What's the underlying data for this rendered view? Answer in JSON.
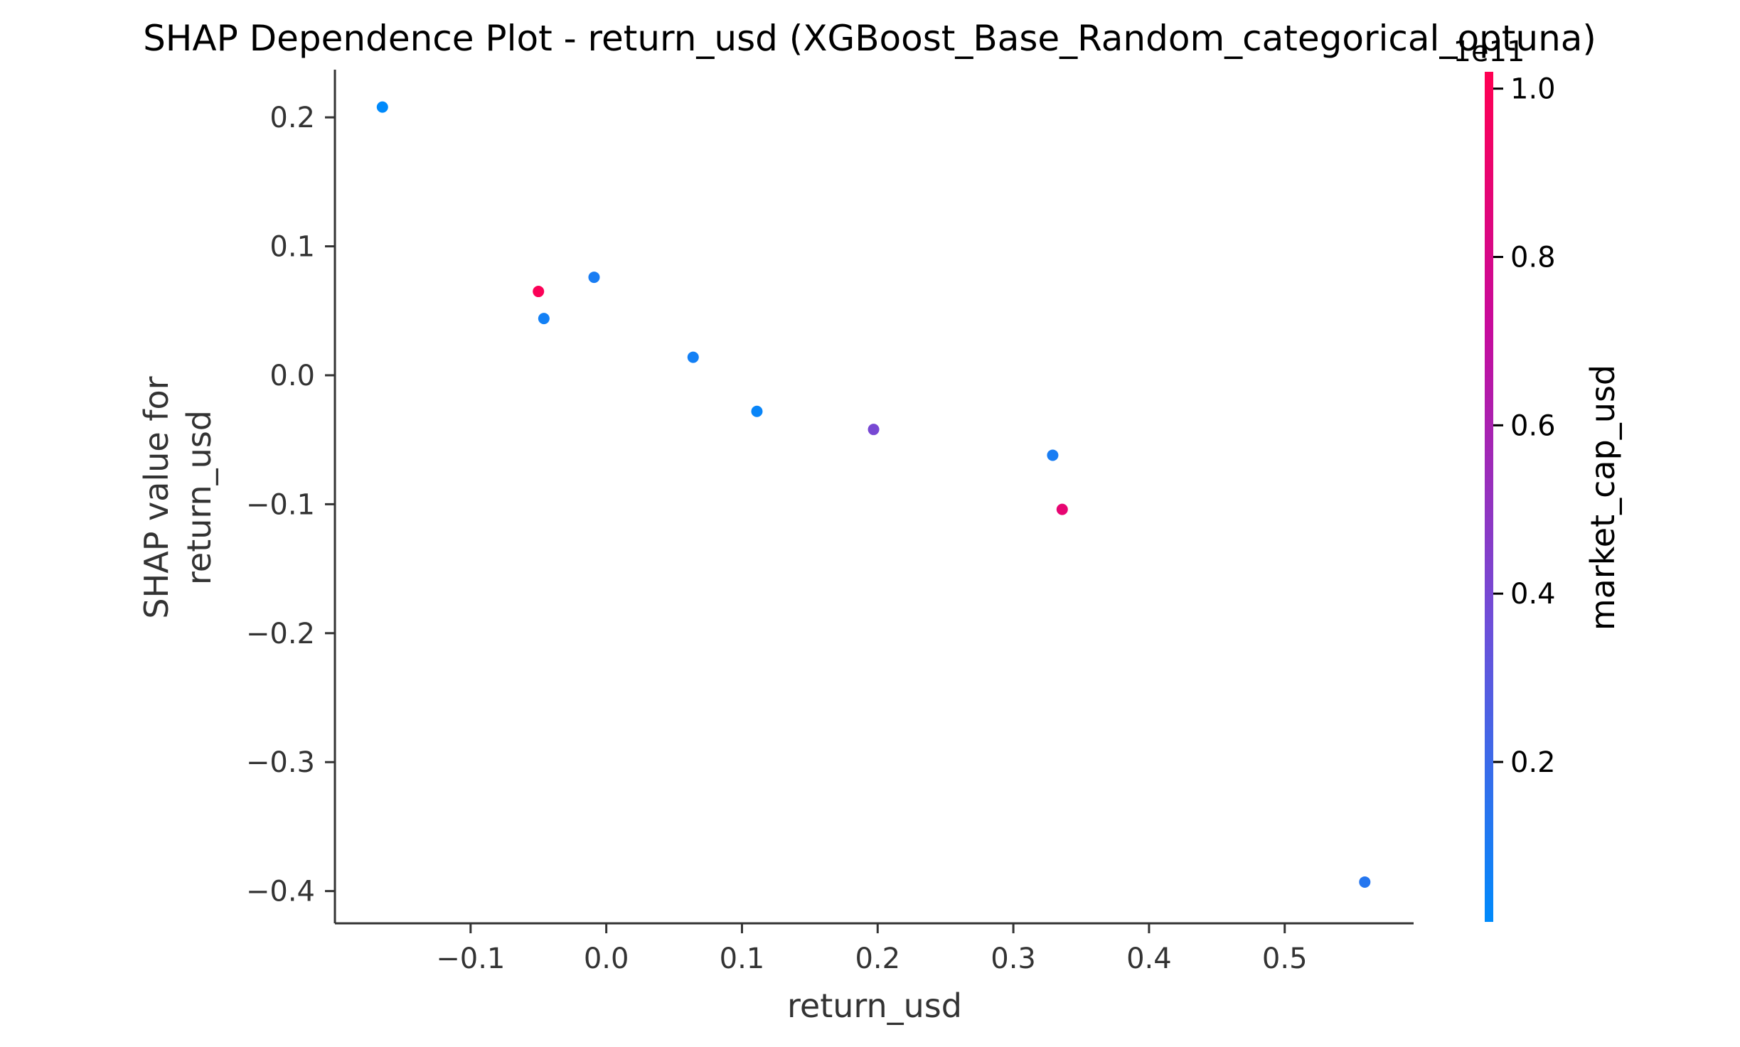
{
  "chart_data": {
    "type": "scatter",
    "title": "SHAP Dependence Plot - return_usd (XGBoost_Base_Random_categorical_optuna)",
    "xlabel": "return_usd",
    "ylabel_lines": [
      "SHAP value for",
      "return_usd"
    ],
    "xlim": [
      -0.2,
      0.595
    ],
    "ylim": [
      -0.425,
      0.237
    ],
    "xticks": [
      -0.1,
      0.0,
      0.1,
      0.2,
      0.3,
      0.4,
      0.5
    ],
    "xtick_labels": [
      "−0.1",
      "0.0",
      "0.1",
      "0.2",
      "0.3",
      "0.4",
      "0.5"
    ],
    "yticks": [
      0.2,
      0.1,
      0.0,
      -0.1,
      -0.2,
      -0.3,
      -0.4
    ],
    "ytick_labels": [
      "0.2",
      "0.1",
      "0.0",
      "−0.1",
      "−0.2",
      "−0.3",
      "−0.4"
    ],
    "grid": false,
    "points": [
      {
        "x": -0.165,
        "y": 0.208,
        "c": 1000000000.0
      },
      {
        "x": -0.05,
        "y": 0.065,
        "c": 100000000000.0
      },
      {
        "x": -0.046,
        "y": 0.044,
        "c": 7000000000.0
      },
      {
        "x": -0.009,
        "y": 0.076,
        "c": 9000000000.0
      },
      {
        "x": 0.064,
        "y": 0.014,
        "c": 7000000000.0
      },
      {
        "x": 0.111,
        "y": -0.028,
        "c": 4000000000.0
      },
      {
        "x": 0.197,
        "y": -0.042,
        "c": 40000000000.0
      },
      {
        "x": 0.329,
        "y": -0.062,
        "c": 9000000000.0
      },
      {
        "x": 0.336,
        "y": -0.104,
        "c": 89000000000.0
      },
      {
        "x": 0.559,
        "y": -0.393,
        "c": 13000000000.0
      }
    ],
    "colorbar": {
      "label": "market_cap_usd",
      "offset_label": "1e11",
      "range": [
        1000000000.0,
        102000000000.0
      ],
      "ticks": [
        0.2,
        0.4,
        0.6,
        0.8,
        1.0
      ],
      "tick_labels": [
        "0.2",
        "0.4",
        "0.6",
        "0.8",
        "1.0"
      ],
      "colors": [
        "#008afb",
        "#6e4fd9",
        "#c70b9c",
        "#ff0052"
      ]
    }
  }
}
